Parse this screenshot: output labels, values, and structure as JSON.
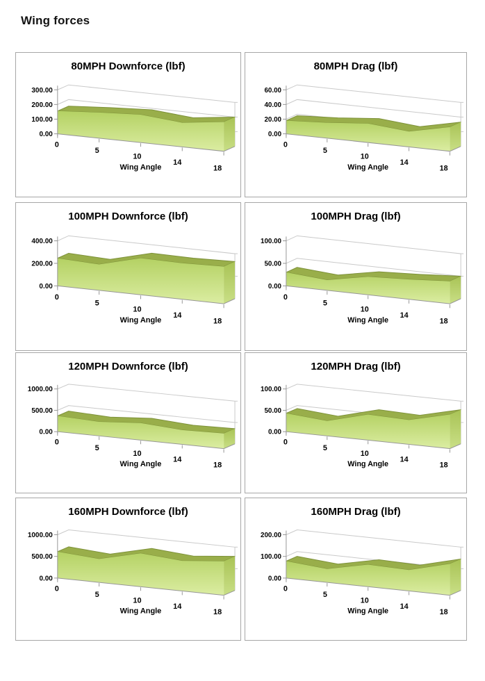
{
  "page": {
    "title": "Wing forces"
  },
  "colors": {
    "area_face_top": "#b4d163",
    "area_face_bottom": "#dbeda2",
    "area_ribbon": "#99ae4a",
    "area_ribbon_edge": "#7e923a",
    "area_side_top": "#a9c356",
    "area_side_bottom": "#c9df86",
    "gridline": "#c9c9c9",
    "axis": "#969696",
    "panel_border": "#a6a6a6",
    "text": "#000000"
  },
  "chart_data": [
    {
      "type": "area",
      "title": "80MPH Downforce (lbf)",
      "xlabel": "Wing Angle",
      "categories": [
        "0",
        "5",
        "10",
        "14",
        "18"
      ],
      "values": [
        155,
        175,
        190,
        165,
        200
      ],
      "y_tick_labels": [
        "300.00",
        "200.00",
        "100.00",
        "0.00"
      ],
      "ylim": [
        0,
        300
      ]
    },
    {
      "type": "area",
      "title": "80MPH Drag (lbf)",
      "xlabel": "Wing Angle",
      "categories": [
        "0",
        "5",
        "10",
        "14",
        "18"
      ],
      "values": [
        18,
        21,
        26,
        21,
        33
      ],
      "y_tick_labels": [
        "60.00",
        "40.00",
        "20.00",
        "0.00"
      ],
      "ylim": [
        0,
        60
      ]
    },
    {
      "type": "area",
      "title": "100MPH Downforce (lbf)",
      "xlabel": "Wing Angle",
      "categories": [
        "0",
        "5",
        "10",
        "14",
        "18"
      ],
      "values": [
        245,
        230,
        325,
        320,
        330
      ],
      "y_tick_labels": [
        "400.00",
        "200.00",
        "0.00"
      ],
      "ylim": [
        0,
        400
      ]
    },
    {
      "type": "area",
      "title": "100MPH Drag (lbf)",
      "xlabel": "Wing Angle",
      "categories": [
        "0",
        "5",
        "10",
        "14",
        "18"
      ],
      "values": [
        30,
        23,
        40,
        44,
        50
      ],
      "y_tick_labels": [
        "100.00",
        "50.00",
        "0.00"
      ],
      "ylim": [
        0,
        100
      ]
    },
    {
      "type": "area",
      "title": "120MPH Downforce (lbf)",
      "xlabel": "Wing Angle",
      "categories": [
        "0",
        "5",
        "10",
        "14",
        "18"
      ],
      "values": [
        370,
        330,
        400,
        335,
        355
      ],
      "y_tick_labels": [
        "1000.00",
        "500.00",
        "0.00"
      ],
      "ylim": [
        0,
        1000
      ]
    },
    {
      "type": "area",
      "title": "120MPH Drag (lbf)",
      "xlabel": "Wing Angle",
      "categories": [
        "0",
        "5",
        "10",
        "14",
        "18"
      ],
      "values": [
        43,
        35,
        60,
        57,
        80
      ],
      "y_tick_labels": [
        "100.00",
        "50.00",
        "0.00"
      ],
      "ylim": [
        0,
        100
      ]
    },
    {
      "type": "area",
      "title": "160MPH Downforce (lbf)",
      "xlabel": "Wing Angle",
      "categories": [
        "0",
        "5",
        "10",
        "14",
        "18"
      ],
      "values": [
        610,
        540,
        770,
        695,
        785
      ],
      "y_tick_labels": [
        "1000.00",
        "500.00",
        "0.00"
      ],
      "ylim": [
        0,
        1000
      ]
    },
    {
      "type": "area",
      "title": "160MPH Drag (lbf)",
      "xlabel": "Wing Angle",
      "categories": [
        "0",
        "5",
        "10",
        "14",
        "18"
      ],
      "values": [
        78,
        62,
        102,
        97,
        145
      ],
      "y_tick_labels": [
        "200.00",
        "100.00",
        "0.00"
      ],
      "ylim": [
        0,
        200
      ]
    }
  ]
}
